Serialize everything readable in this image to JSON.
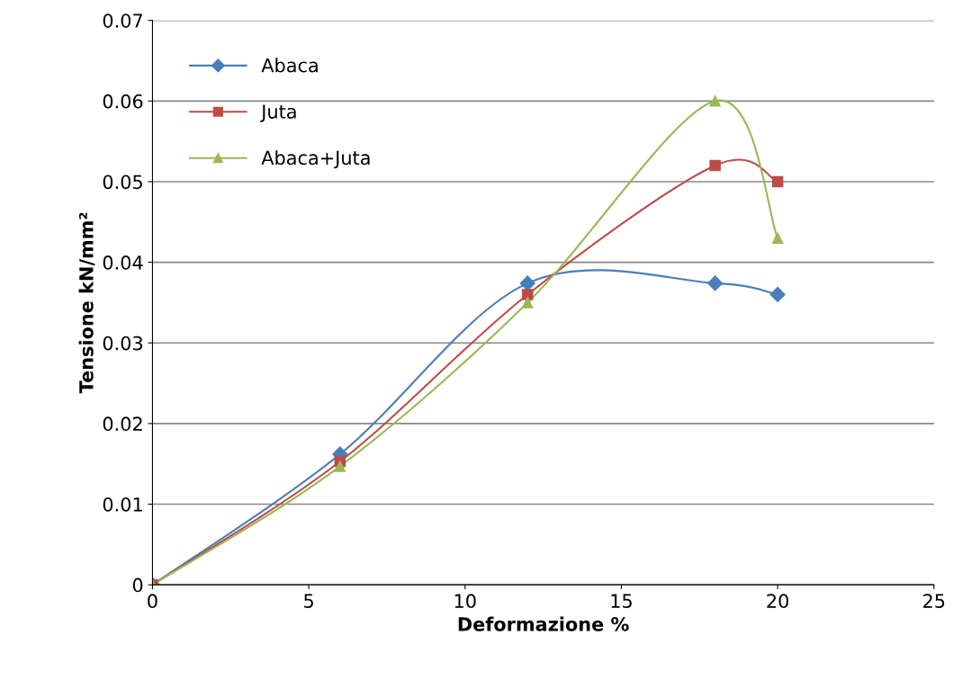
{
  "chart_data": {
    "type": "line",
    "xlabel": "Deformazione %",
    "ylabel": "Tensione kN/mm²",
    "x": [
      0,
      6,
      12,
      18,
      20
    ],
    "series": [
      {
        "name": "Abaca",
        "color": "#4a7ebb",
        "marker": "diamond",
        "values": [
          0,
          0.0162,
          0.0374,
          0.0374,
          0.036
        ]
      },
      {
        "name": "Juta",
        "color": "#be4b48",
        "marker": "square",
        "values": [
          0,
          0.0153,
          0.036,
          0.052,
          0.05
        ]
      },
      {
        "name": "Abaca+Juta",
        "color": "#98b954",
        "marker": "triangle",
        "values": [
          0,
          0.0147,
          0.035,
          0.06,
          0.043
        ]
      }
    ],
    "xlim": [
      0,
      25
    ],
    "xticks": [
      0,
      5,
      10,
      15,
      20,
      25
    ],
    "ylim": [
      0,
      0.07
    ],
    "yticks": [
      0,
      0.01,
      0.02,
      0.03,
      0.04,
      0.05,
      0.06,
      0.07
    ],
    "grid": "y",
    "legend": "top left"
  }
}
